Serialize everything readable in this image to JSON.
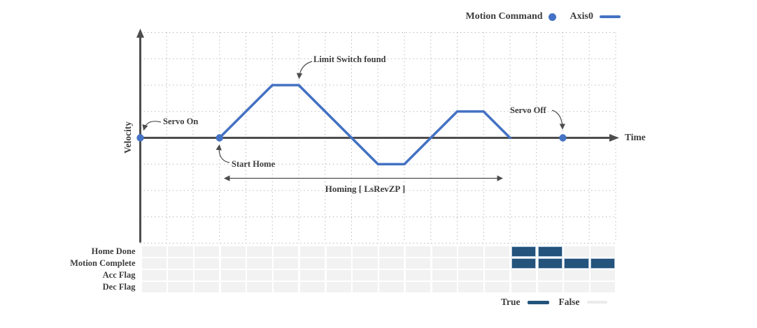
{
  "colors": {
    "curve": "#4472c4",
    "marker": "#4472c4",
    "axis": "#4d4d4d",
    "grid": "#9a9a9a",
    "text": "#3d3d3d",
    "flag_true": "#24537c",
    "flag_false": "#f2f2f2",
    "flag_true_border": "#b4c9de",
    "false_swatch": "#ebebeb"
  },
  "legend_top": {
    "motion_command": "Motion Command",
    "axis0": "Axis0"
  },
  "axis_labels": {
    "x": "Time",
    "y": "Velocity"
  },
  "annotations": {
    "servo_on": "Servo On",
    "start_home": "Start Home",
    "limit_switch": "Limit Switch found",
    "servo_off": "Servo Off",
    "homing_span": "Homing [ LsRevZP ]"
  },
  "flag_cell_count": 18,
  "flag_rows": [
    {
      "label": "Home Done",
      "true_cells": [
        14,
        15
      ]
    },
    {
      "label": "Motion Complete",
      "true_cells": [
        14,
        15,
        16,
        17
      ]
    },
    {
      "label": "Acc Flag",
      "true_cells": []
    },
    {
      "label": "Dec Flag",
      "true_cells": []
    }
  ],
  "legend_bottom": {
    "true": "True",
    "false": "False"
  },
  "chart_data": {
    "type": "line",
    "title": "",
    "xlabel": "Time",
    "ylabel": "Velocity",
    "grid": "dotted",
    "legend_position": "top-right",
    "x_range_grid_units": [
      0,
      18
    ],
    "y_range_grid_units": [
      -4,
      4
    ],
    "series": [
      {
        "name": "Axis0",
        "color": "#4472c4",
        "points_grid_units": [
          [
            3,
            0
          ],
          [
            5,
            2
          ],
          [
            6,
            2
          ],
          [
            8,
            0
          ],
          [
            9,
            -1
          ],
          [
            10,
            -1
          ],
          [
            11,
            0
          ],
          [
            12,
            1
          ],
          [
            13,
            1
          ],
          [
            14,
            0
          ]
        ]
      }
    ],
    "markers": [
      {
        "name": "Servo On",
        "x": 0,
        "y": 0
      },
      {
        "name": "Start Home",
        "x": 3,
        "y": 0
      },
      {
        "name": "Servo Off",
        "x": 16,
        "y": 0
      }
    ],
    "homing_span_grid_units": [
      3.2,
      13.7
    ],
    "annotations": [
      "Servo On",
      "Start Home",
      "Limit Switch found",
      "Servo Off",
      "Homing [ LsRevZP ]"
    ],
    "flag_lanes": {
      "cell_count": 18,
      "rows": [
        {
          "label": "Home Done",
          "true_cells": [
            14,
            15
          ]
        },
        {
          "label": "Motion Complete",
          "true_cells": [
            14,
            15,
            16,
            17
          ]
        },
        {
          "label": "Acc Flag",
          "true_cells": []
        },
        {
          "label": "Dec Flag",
          "true_cells": []
        }
      ]
    }
  }
}
